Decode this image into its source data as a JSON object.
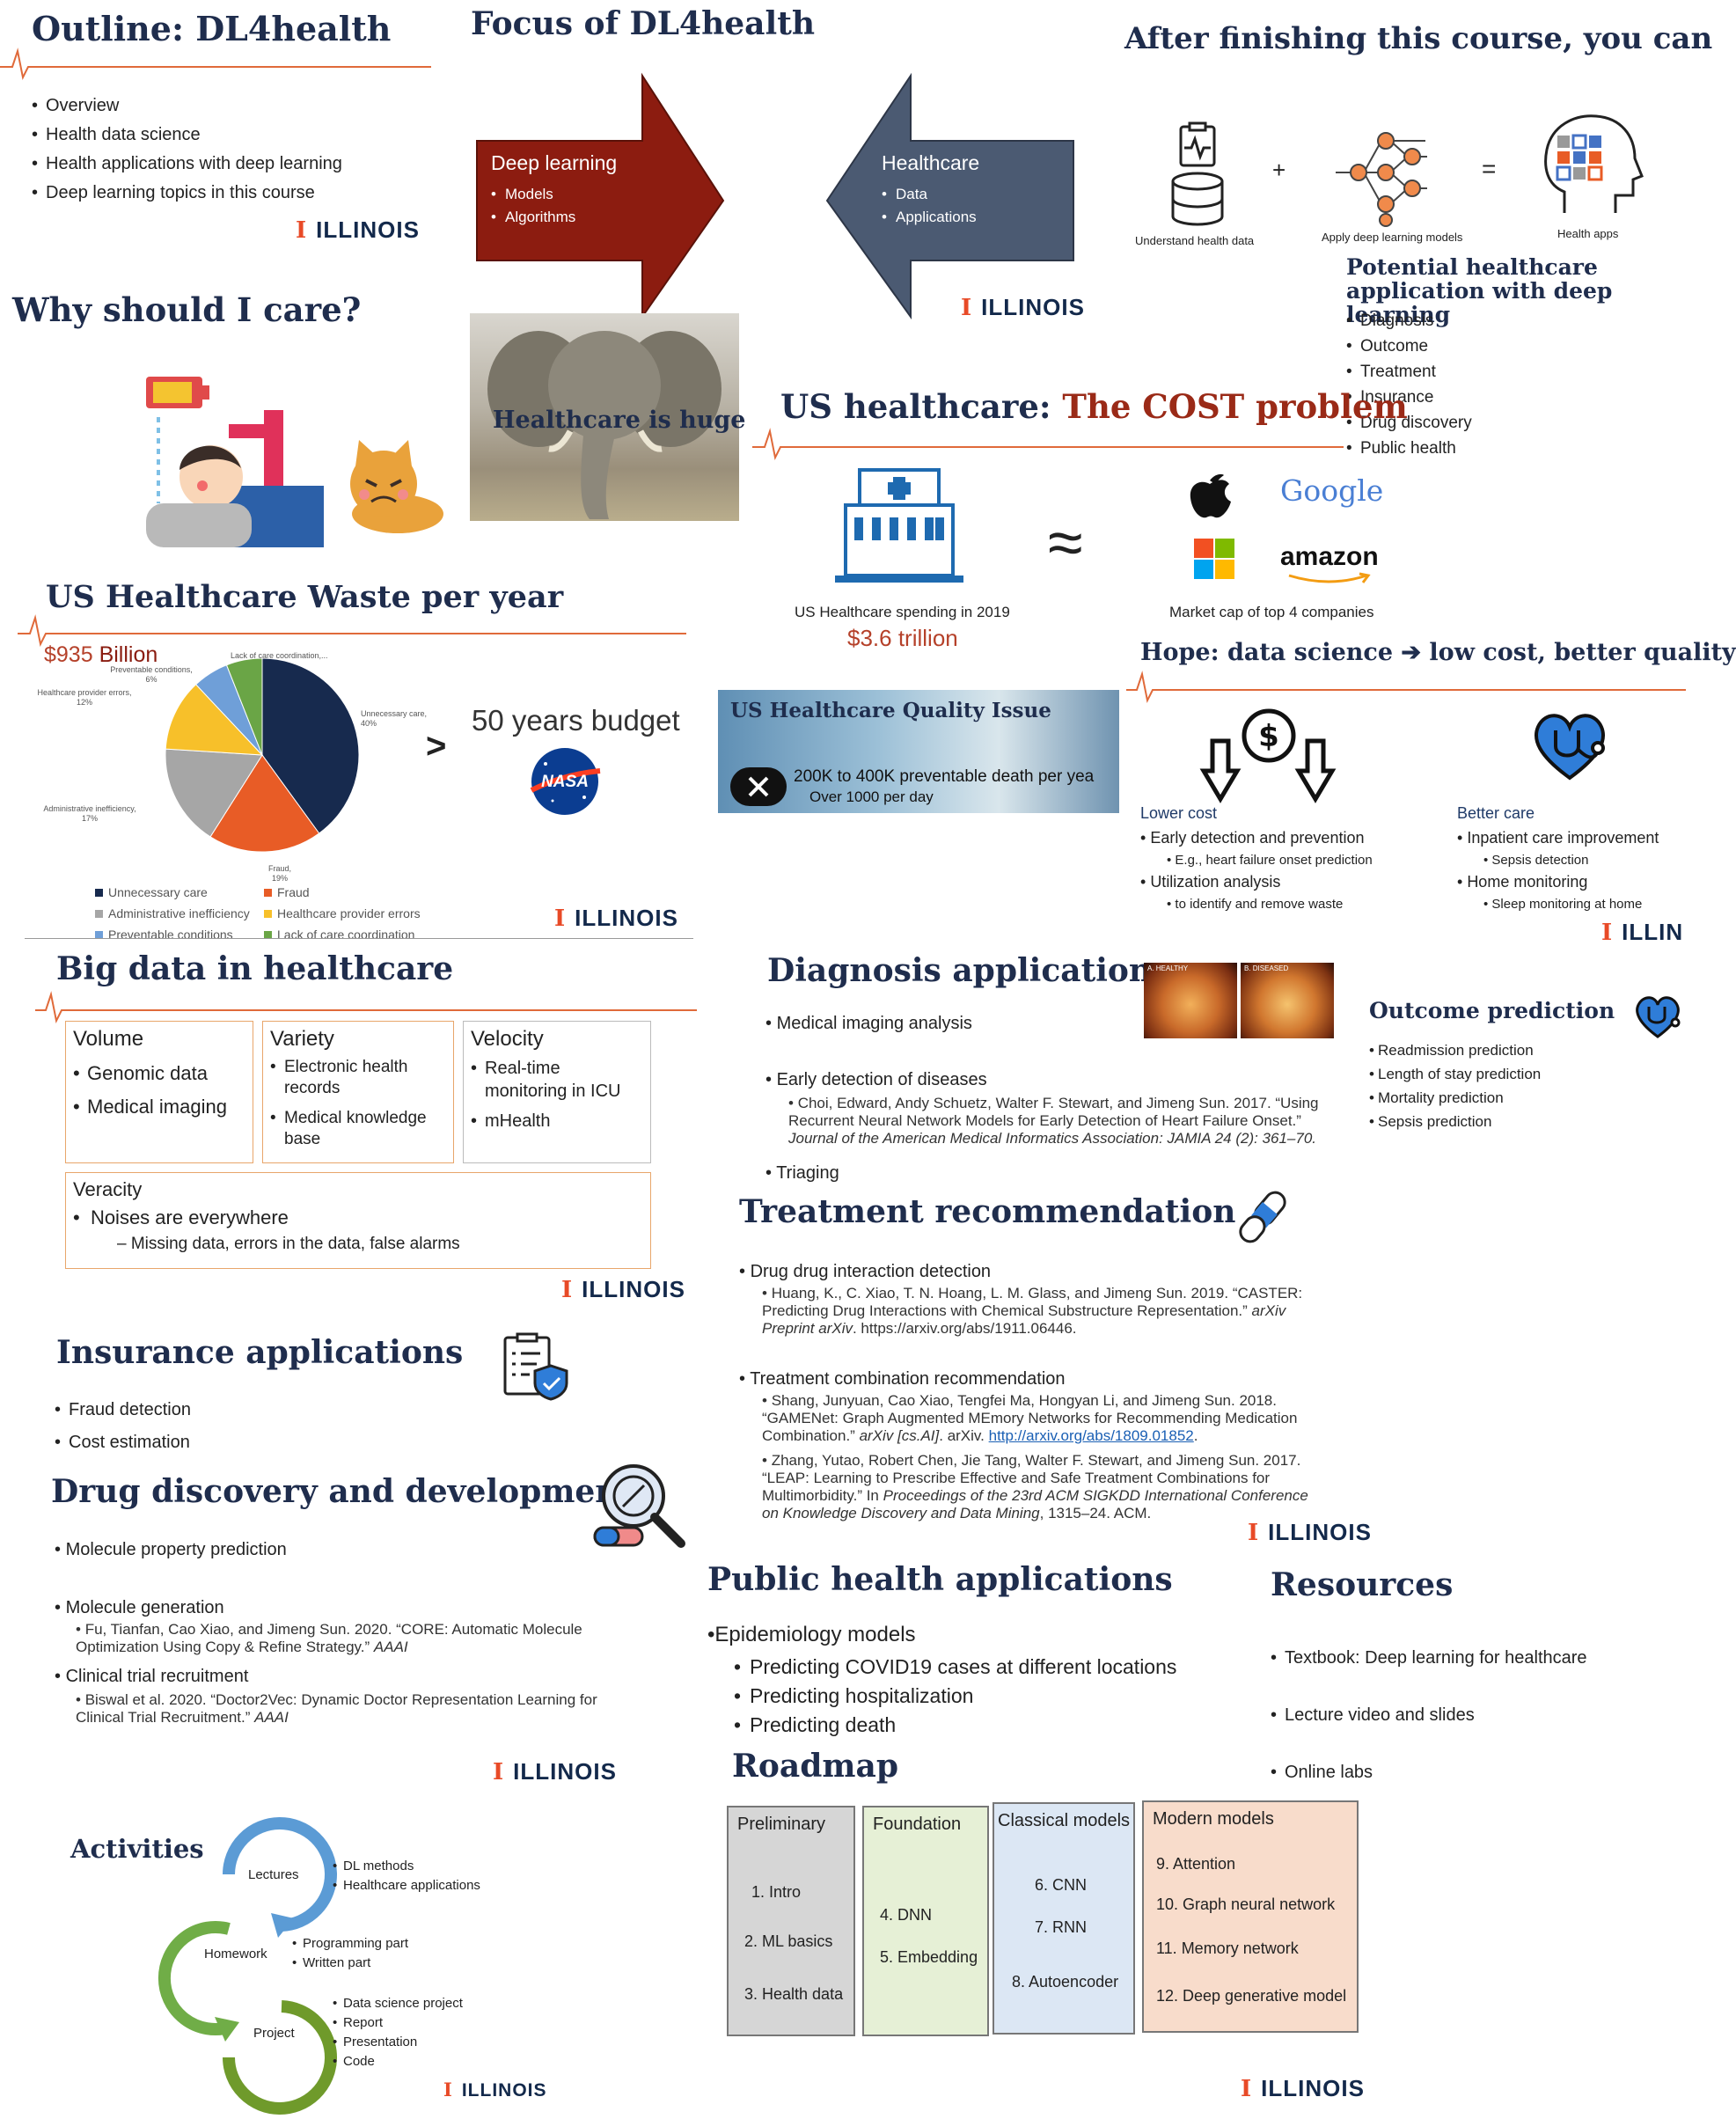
{
  "outline": {
    "title": "Outline: DL4health",
    "items": [
      "Overview",
      "Health data science",
      "Health applications with deep learning",
      "Deep learning topics in this course"
    ]
  },
  "brand": {
    "name": "ILLINOIS",
    "mark": "I",
    "partial": "ILLIN"
  },
  "focus": {
    "title": "Focus of DL4health",
    "left_head": "Deep learning",
    "left_items": [
      "Models",
      "Algorithms"
    ],
    "right_head": "Healthcare",
    "right_items": [
      "Data",
      "Applications"
    ]
  },
  "after": {
    "title": "After finishing this course, you can",
    "plus": "+",
    "equals": "=",
    "cap1": "Understand health data",
    "cap2": "Apply deep learning models",
    "cap3": "Health apps",
    "potential_title": "Potential healthcare application with deep learning",
    "potential_items": [
      "Diagnosis",
      "Outcome",
      "Treatment",
      "Insurance",
      "Drug discovery",
      "Public health"
    ]
  },
  "why": {
    "title": "Why should I care?",
    "elephant_caption": "Healthcare is huge"
  },
  "cost": {
    "title_a": "US healthcare: ",
    "title_b": "The COST problem",
    "spending_label": "US Healthcare spending in 2019",
    "spending_value": "$3.6 trillion",
    "approx": "≈",
    "logos": [
      "Google",
      "amazon"
    ],
    "market_label": "Market cap of top 4 companies"
  },
  "waste": {
    "title": "US Healthcare Waste per year",
    "amount_a": "$935 ",
    "amount_b": "Billion",
    "gt": ">",
    "budget": "50 years budget",
    "nasa": "NASA"
  },
  "chart_data": {
    "type": "pie",
    "title": "",
    "labels": [
      "Unnecessary care",
      "Fraud",
      "Administrative inefficiency",
      "Healthcare provider errors",
      "Preventable conditions",
      "Lack of care coordination"
    ],
    "values": [
      40,
      19,
      17,
      12,
      6,
      6
    ],
    "colors": [
      "#172a4e",
      "#e85c26",
      "#a6a6a6",
      "#f7c02a",
      "#6f9fd8",
      "#6aa546"
    ],
    "slice_labels": [
      "Unnecessary care, 40%",
      "Fraud, 19%",
      "Administrative inefficiency, 17%",
      "Healthcare provider errors, 12%",
      "Preventable conditions, 6%",
      "Lack of care coordination,..."
    ],
    "legend_position": "bottom"
  },
  "quality": {
    "title": "US Healthcare Quality Issue",
    "line1": "200K to 400K preventable death per yea",
    "line2": "Over 1000 per day"
  },
  "hope": {
    "title": "Hope: data science ➔ low cost, better quality",
    "left_head": "Lower cost",
    "left_items": [
      {
        "t": "Early detection and prevention",
        "s": "E.g., heart failure onset prediction"
      },
      {
        "t": "Utilization analysis",
        "s": "to identify and remove waste"
      }
    ],
    "right_head": "Better care",
    "right_items": [
      {
        "t": "Inpatient care improvement",
        "s": "Sepsis detection"
      },
      {
        "t": "Home monitoring",
        "s": "Sleep monitoring at home"
      }
    ]
  },
  "bigdata": {
    "title": "Big data in healthcare",
    "volume": {
      "head": "Volume",
      "items": [
        "Genomic data",
        "Medical imaging"
      ]
    },
    "variety": {
      "head": "Variety",
      "items": [
        "Electronic health records",
        "Medical knowledge base"
      ]
    },
    "velocity": {
      "head": "Velocity",
      "items": [
        "Real-time monitoring in ICU",
        "mHealth"
      ]
    },
    "veracity": {
      "head": "Veracity",
      "item": "Noises are everywhere",
      "sub": "– Missing data, errors in the data, false alarms"
    }
  },
  "diagnosis": {
    "title": "Diagnosis applications",
    "img_a": "A. HEALTHY",
    "img_b": "B. DISEASED",
    "items": [
      "Medical imaging analysis",
      "Early detection of diseases",
      "Triaging"
    ],
    "ref": "Choi, Edward, Andy Schuetz, Walter F. Stewart, and Jimeng Sun. 2017. “Using Recurrent Neural Network Models for Early Detection of Heart Failure Onset.”",
    "ref_journal": "Journal of the American Medical Informatics Association: JAMIA 24 (2): 361–70."
  },
  "outcome": {
    "title": "Outcome prediction",
    "items": [
      "Readmission prediction",
      "Length of stay prediction",
      "Mortality prediction",
      "Sepsis prediction"
    ]
  },
  "treatment": {
    "title": "Treatment recommendation",
    "item1": "Drug drug interaction detection",
    "ref1": "Huang, K., C. Xiao, T. N. Hoang, L. M. Glass, and Jimeng Sun. 2019. “CASTER: Predicting Drug Interactions with Chemical Substructure Representation.”",
    "ref1_venue": "arXiv Preprint arXiv",
    "ref1_url": ". https://arxiv.org/abs/1911.06446.",
    "item2": "Treatment combination recommendation",
    "ref2": "Shang, Junyuan, Cao Xiao, Tengfei Ma, Hongyan Li, and Jimeng Sun. 2018. “GAMENet: Graph Augmented MEmory Networks for Recommending Medication Combination.”",
    "ref2_venue": "arXiv [cs.AI]",
    "ref2_tail": ". arXiv. ",
    "ref2_url": "http://arxiv.org/abs/1809.01852",
    "ref3": "Zhang, Yutao, Robert Chen, Jie Tang, Walter F. Stewart, and Jimeng Sun. 2017. “LEAP: Learning to Prescribe Effective and Safe Treatment Combinations for Multimorbidity.” In",
    "ref3_venue": "Proceedings of the 23rd ACM SIGKDD International Conference on Knowledge Discovery and Data Mining",
    "ref3_tail": ", 1315–24. ACM."
  },
  "insurance": {
    "title": "Insurance applications",
    "items": [
      "Fraud detection",
      "Cost estimation"
    ]
  },
  "drug": {
    "title": "Drug discovery and development",
    "item1": "Molecule property prediction",
    "item2": "Molecule generation",
    "ref1": "Fu, Tianfan, Cao Xiao, and Jimeng Sun. 2020. “CORE: Automatic Molecule Optimization Using Copy & Refine Strategy.”",
    "ref1_venue": "AAAI",
    "item3": "Clinical trial recruitment",
    "ref2": "Biswal et al. 2020. “Doctor2Vec: Dynamic Doctor Representation Learning for Clinical Trial Recruitment.”",
    "ref2_venue": "AAAI"
  },
  "public": {
    "title": "Public health applications",
    "head": "Epidemiology models",
    "items": [
      "Predicting COVID19 cases at different locations",
      "Predicting hospitalization",
      "Predicting death"
    ]
  },
  "resources": {
    "title": "Resources",
    "items": [
      "Textbook: Deep learning for healthcare",
      "Lecture video and slides",
      "Online labs"
    ]
  },
  "roadmap": {
    "title": "Roadmap",
    "cols": [
      {
        "head": "Preliminary",
        "items": [
          "1. Intro",
          "2. ML basics",
          "3. Health data"
        ],
        "color": "#d6d6d6"
      },
      {
        "head": "Foundation",
        "items": [
          "4. DNN",
          "5. Embedding"
        ],
        "color": "#e6f0d6"
      },
      {
        "head": "Classical models",
        "items": [
          "6. CNN",
          "7. RNN",
          "8. Autoencoder"
        ],
        "color": "#dce7f4"
      },
      {
        "head": "Modern models",
        "items": [
          "9. Attention",
          "10. Graph neural network",
          "11. Memory network",
          "12. Deep generative model"
        ],
        "color": "#f8dccb"
      }
    ]
  },
  "activities": {
    "title": "Activities",
    "nodes": [
      "Lectures",
      "Homework",
      "Project"
    ],
    "lectures": [
      "DL methods",
      "Healthcare applications"
    ],
    "homework": [
      "Programming part",
      "Written part"
    ],
    "project": [
      "Data science project",
      "Report",
      "Presentation",
      "Code"
    ]
  }
}
